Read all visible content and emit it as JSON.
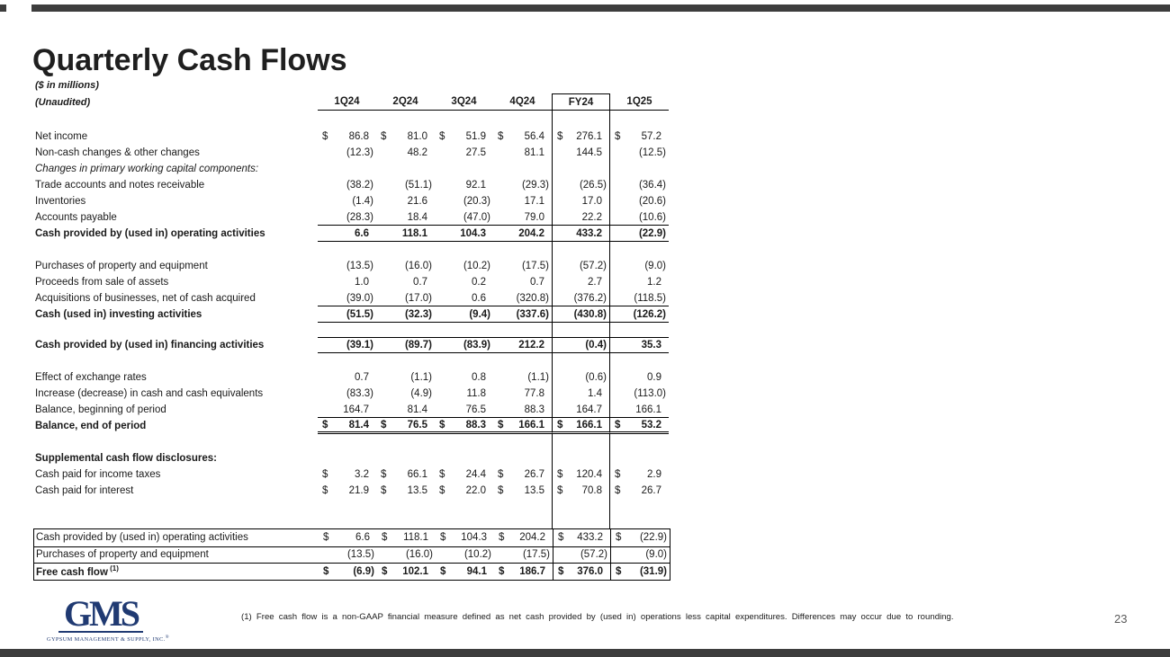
{
  "slide": {
    "title": "Quarterly Cash Flows",
    "subtitle1": "($ in millions)",
    "subtitle2": "(Unaudited)",
    "page_number": "23",
    "footnote": "(1)  Free cash flow is a non-GAAP financial measure defined as net cash provided by (used in) operations less capital expenditures. Differences may occur due to rounding.",
    "bar_color": "#3d3d3d",
    "logo": {
      "text": "GMS",
      "subtext": "GYPSUM MANAGEMENT & SUPPLY, INC.",
      "reg_mark": "®",
      "color": "#203a72"
    }
  },
  "table": {
    "columns": [
      "1Q24",
      "2Q24",
      "3Q24",
      "4Q24",
      "FY24",
      "1Q25"
    ],
    "highlight_column": "FY24",
    "rows": [
      {
        "spacer": 20
      },
      {
        "label": "Net income",
        "dollar": true,
        "values": [
          "86.8",
          "81.0",
          "51.9",
          "56.4",
          "276.1",
          "57.2"
        ]
      },
      {
        "label": "Non-cash changes & other changes",
        "values": [
          "(12.3)",
          "48.2",
          "27.5",
          "81.1",
          "144.5",
          "(12.5)"
        ]
      },
      {
        "label": "Changes in primary working capital components:",
        "italic": true
      },
      {
        "label": "Trade accounts and notes receivable",
        "values": [
          "(38.2)",
          "(51.1)",
          "92.1",
          "(29.3)",
          "(26.5)",
          "(36.4)"
        ]
      },
      {
        "label": "Inventories",
        "values": [
          "(1.4)",
          "21.6",
          "(20.3)",
          "17.1",
          "17.0",
          "(20.6)"
        ]
      },
      {
        "label": "Accounts payable",
        "values": [
          "(28.3)",
          "18.4",
          "(47.0)",
          "79.0",
          "22.2",
          "(10.6)"
        ],
        "border": "b"
      },
      {
        "label": "Cash provided by (used in) operating activities",
        "bold": true,
        "values": [
          "6.6",
          "118.1",
          "104.3",
          "204.2",
          "433.2",
          "(22.9)"
        ],
        "border": "b"
      },
      {
        "spacer": 18
      },
      {
        "label": "Purchases of property and equipment",
        "values": [
          "(13.5)",
          "(16.0)",
          "(10.2)",
          "(17.5)",
          "(57.2)",
          "(9.0)"
        ]
      },
      {
        "label": "Proceeds from sale of assets",
        "values": [
          "1.0",
          "0.7",
          "0.2",
          "0.7",
          "2.7",
          "1.2"
        ]
      },
      {
        "label": "Acquisitions of businesses, net of cash acquired",
        "values": [
          "(39.0)",
          "(17.0)",
          "0.6",
          "(320.8)",
          "(376.2)",
          "(118.5)"
        ],
        "border": "b"
      },
      {
        "label": "Cash (used in) investing activities",
        "bold": true,
        "values": [
          "(51.5)",
          "(32.3)",
          "(9.4)",
          "(337.6)",
          "(430.8)",
          "(126.2)"
        ],
        "border": "b"
      },
      {
        "spacer": 16
      },
      {
        "label": "Cash provided by (used in) financing activities",
        "bold": true,
        "values": [
          "(39.1)",
          "(89.7)",
          "(83.9)",
          "212.2",
          "(0.4)",
          "35.3"
        ],
        "border": "tb"
      },
      {
        "spacer": 18
      },
      {
        "label": "Effect of exchange rates",
        "values": [
          "0.7",
          "(1.1)",
          "0.8",
          "(1.1)",
          "(0.6)",
          "0.9"
        ]
      },
      {
        "label": "Increase (decrease) in cash and cash equivalents",
        "values": [
          "(83.3)",
          "(4.9)",
          "11.8",
          "77.8",
          "1.4",
          "(113.0)"
        ]
      },
      {
        "label": "Balance, beginning of period",
        "values": [
          "164.7",
          "81.4",
          "76.5",
          "88.3",
          "164.7",
          "166.1"
        ],
        "border": "b"
      },
      {
        "label": "Balance, end of period",
        "bold": true,
        "dollar": true,
        "values": [
          "81.4",
          "76.5",
          "88.3",
          "166.1",
          "166.1",
          "53.2"
        ],
        "border": "db"
      },
      {
        "spacer": 18
      },
      {
        "label": "Supplemental cash flow disclosures:",
        "bold": true
      },
      {
        "label": "Cash paid for income taxes",
        "dollar": true,
        "values": [
          "3.2",
          "66.1",
          "24.4",
          "26.7",
          "120.4",
          "2.9"
        ]
      },
      {
        "label": "Cash paid for interest",
        "dollar": true,
        "values": [
          "21.9",
          "13.5",
          "22.0",
          "13.5",
          "70.8",
          "26.7"
        ]
      },
      {
        "spacer": 33
      }
    ],
    "box_rows": [
      {
        "label": "Cash provided by (used in) operating activities",
        "dollar": true,
        "values": [
          "6.6",
          "118.1",
          "104.3",
          "204.2",
          "433.2",
          "(22.9)"
        ]
      },
      {
        "label": "Purchases of property and equipment",
        "values": [
          "(13.5)",
          "(16.0)",
          "(10.2)",
          "(17.5)",
          "(57.2)",
          "(9.0)"
        ]
      },
      {
        "label": "Free cash flow",
        "sup": "(1)",
        "bold": true,
        "dollar": true,
        "values": [
          "(6.9)",
          "102.1",
          "94.1",
          "186.7",
          "376.0",
          "(31.9)"
        ]
      }
    ]
  }
}
